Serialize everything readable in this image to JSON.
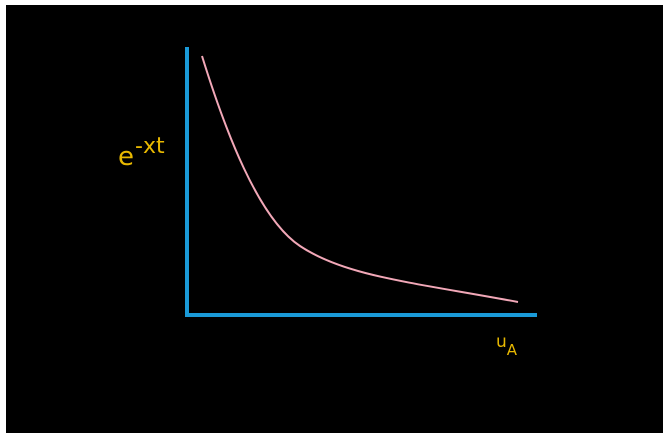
{
  "diagram": {
    "y_axis_label": {
      "base": "e",
      "superscript": "-xt"
    },
    "x_axis_label": {
      "base": "u",
      "subscript": "A"
    },
    "colors": {
      "background": "#000000",
      "axes": "#1a9ad8",
      "curve": "#f2a8b8",
      "labels": "#e8b800"
    }
  }
}
